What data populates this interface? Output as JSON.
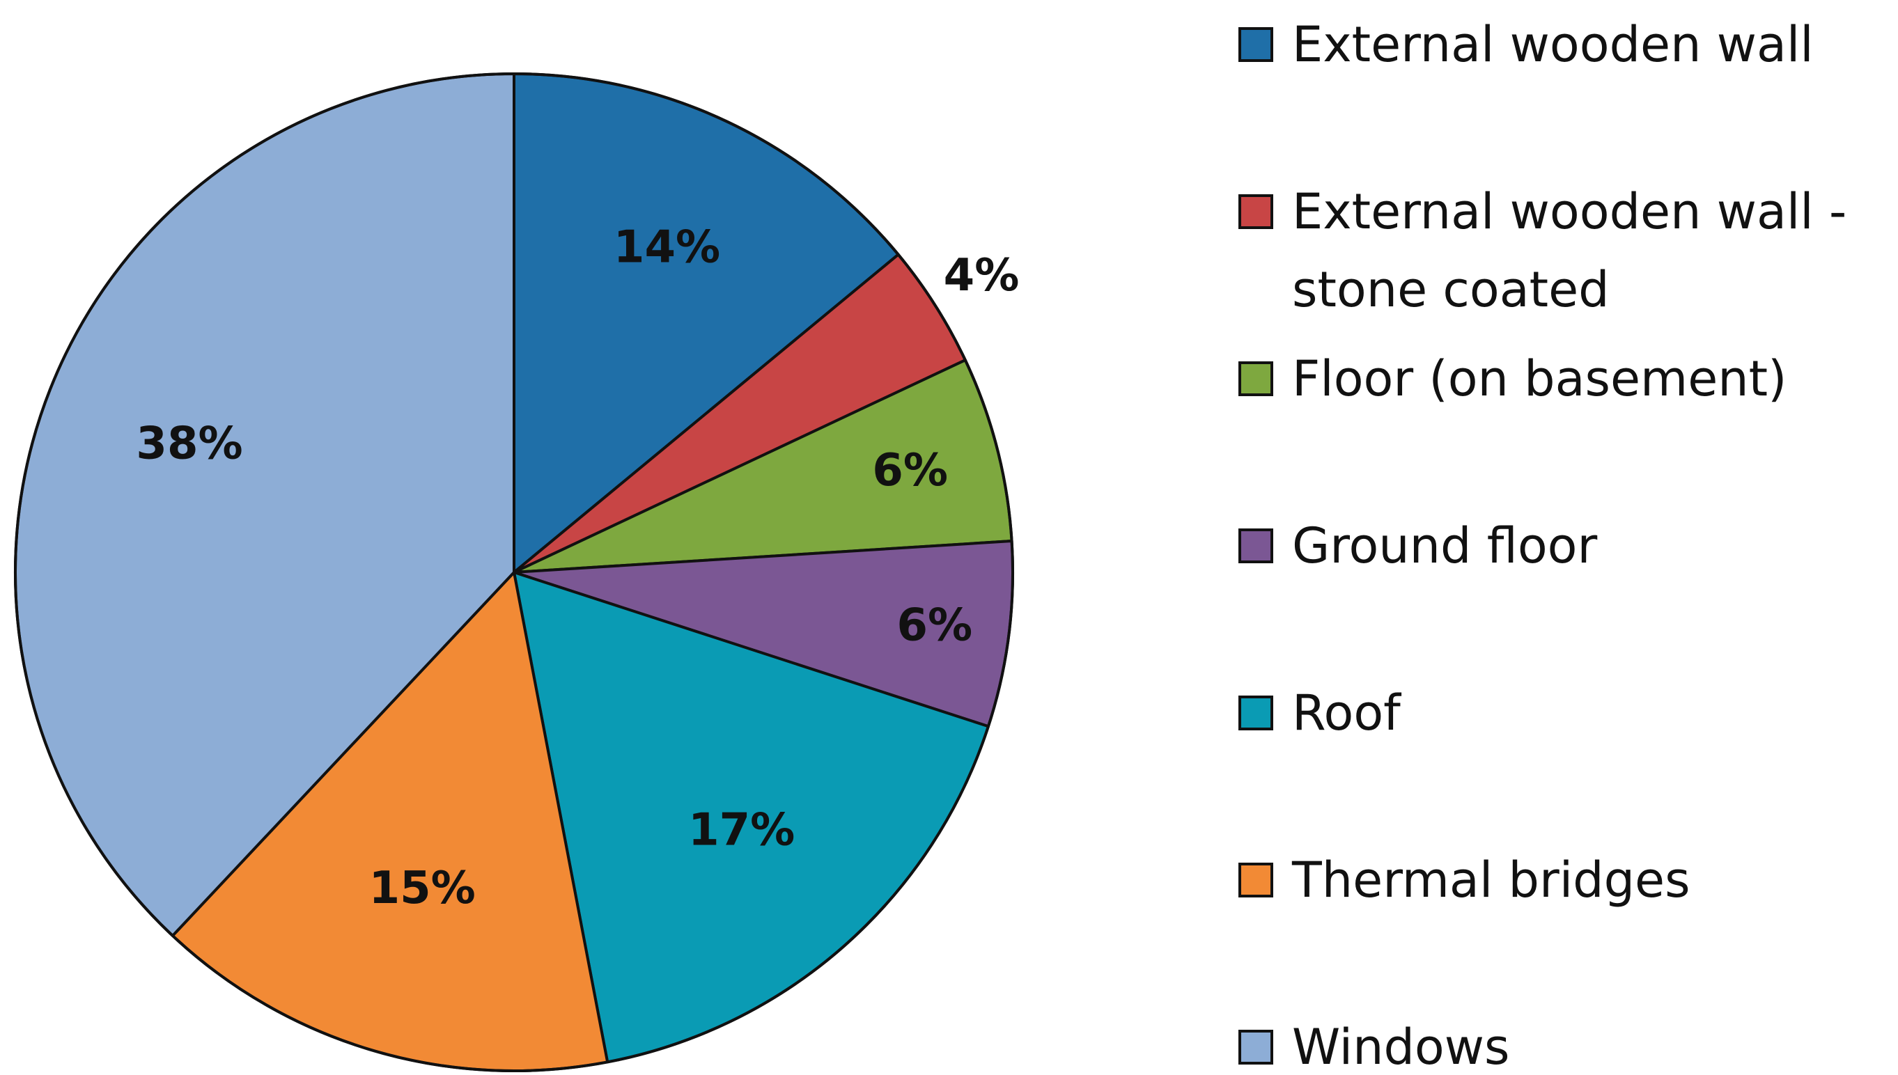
{
  "chart_data": {
    "type": "pie",
    "title": "",
    "legend_position": "right",
    "slices": [
      {
        "label": "External wooden wall",
        "value": 14,
        "display": "14%",
        "color": "#1f6fa8"
      },
      {
        "label": "External wooden wall - stone coated",
        "value": 4,
        "display": "4%",
        "color": "#c84545"
      },
      {
        "label": "Floor (on basement)",
        "value": 6,
        "display": "6%",
        "color": "#7ea83f"
      },
      {
        "label": "Ground floor",
        "value": 6,
        "display": "6%",
        "color": "#7b5794"
      },
      {
        "label": "Roof",
        "value": 17,
        "display": "17%",
        "color": "#0a9bb4"
      },
      {
        "label": "Thermal bridges",
        "value": 15,
        "display": "15%",
        "color": "#f28a35"
      },
      {
        "label": "Windows",
        "value": 38,
        "display": "38%",
        "color": "#8dadd6"
      }
    ],
    "legend": [
      {
        "lines": [
          "External wooden wall"
        ]
      },
      {
        "lines": [
          "External wooden wall -",
          "stone coated"
        ]
      },
      {
        "lines": [
          "Floor (on basement)"
        ]
      },
      {
        "lines": [
          "Ground floor"
        ]
      },
      {
        "lines": [
          "Roof"
        ]
      },
      {
        "lines": [
          "Thermal bridges"
        ]
      },
      {
        "lines": [
          "Windows"
        ]
      }
    ]
  }
}
